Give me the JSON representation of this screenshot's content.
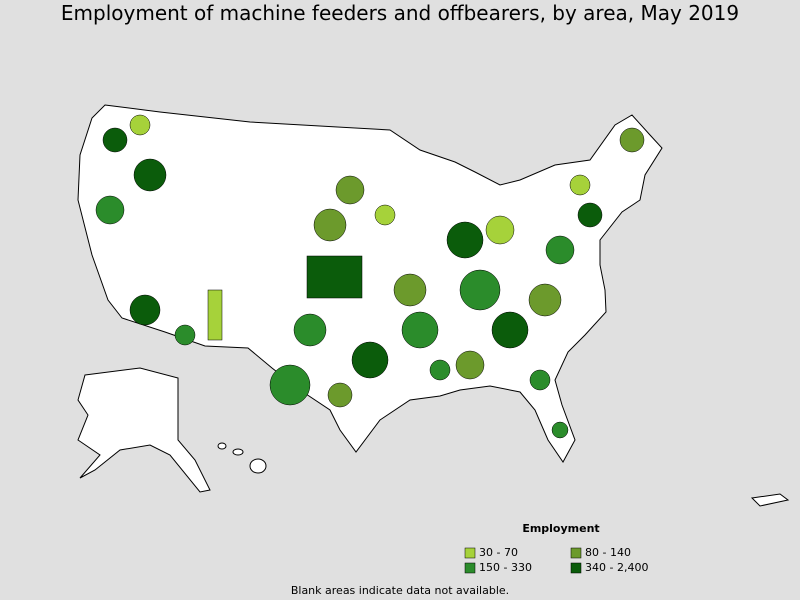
{
  "title": "Employment of machine feeders and offbearers, by area, May 2019",
  "legend": {
    "title": "Employment",
    "items": [
      {
        "label": "30 - 70",
        "color": "#a6d23a"
      },
      {
        "label": "80 - 140",
        "color": "#6c9a2c"
      },
      {
        "label": "150 - 330",
        "color": "#2b8c2b"
      },
      {
        "label": "340 - 2,400",
        "color": "#0b5c0b"
      }
    ]
  },
  "note": "Blank areas indicate data not available."
}
